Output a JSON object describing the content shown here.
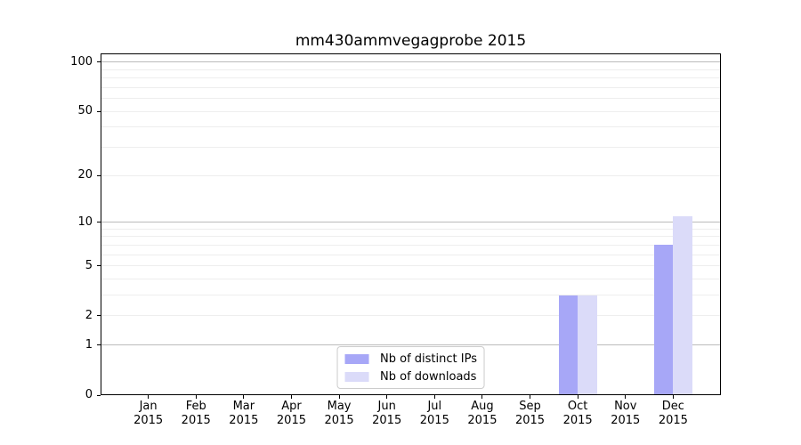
{
  "chart_data": {
    "type": "bar",
    "title": "mm430ammvegagprobe 2015",
    "categories": [
      "Jan 2015",
      "Feb 2015",
      "Mar 2015",
      "Apr 2015",
      "May 2015",
      "Jun 2015",
      "Jul 2015",
      "Aug 2015",
      "Sep 2015",
      "Oct 2015",
      "Nov 2015",
      "Dec 2015"
    ],
    "series": [
      {
        "name": "Nb of distinct IPs",
        "color": "#a7a7f7",
        "values": [
          0,
          0,
          0,
          0,
          0,
          0,
          0,
          0,
          0,
          3,
          0,
          7
        ]
      },
      {
        "name": "Nb of downloads",
        "color": "#dbdbf9",
        "values": [
          0,
          0,
          0,
          0,
          0,
          0,
          0,
          0,
          0,
          3,
          0,
          11
        ]
      }
    ],
    "xlabel": "",
    "ylabel": "",
    "yscale": "log1p",
    "ytick_values": [
      0,
      1,
      2,
      5,
      10,
      20,
      50,
      100
    ],
    "ylim": [
      0,
      113
    ],
    "grid": true,
    "legend_position": "lower center",
    "colors": {
      "major_grid": "#bbbbbb",
      "minor_grid": "#eeeeee",
      "spine": "#000000",
      "background": "#ffffff"
    }
  }
}
